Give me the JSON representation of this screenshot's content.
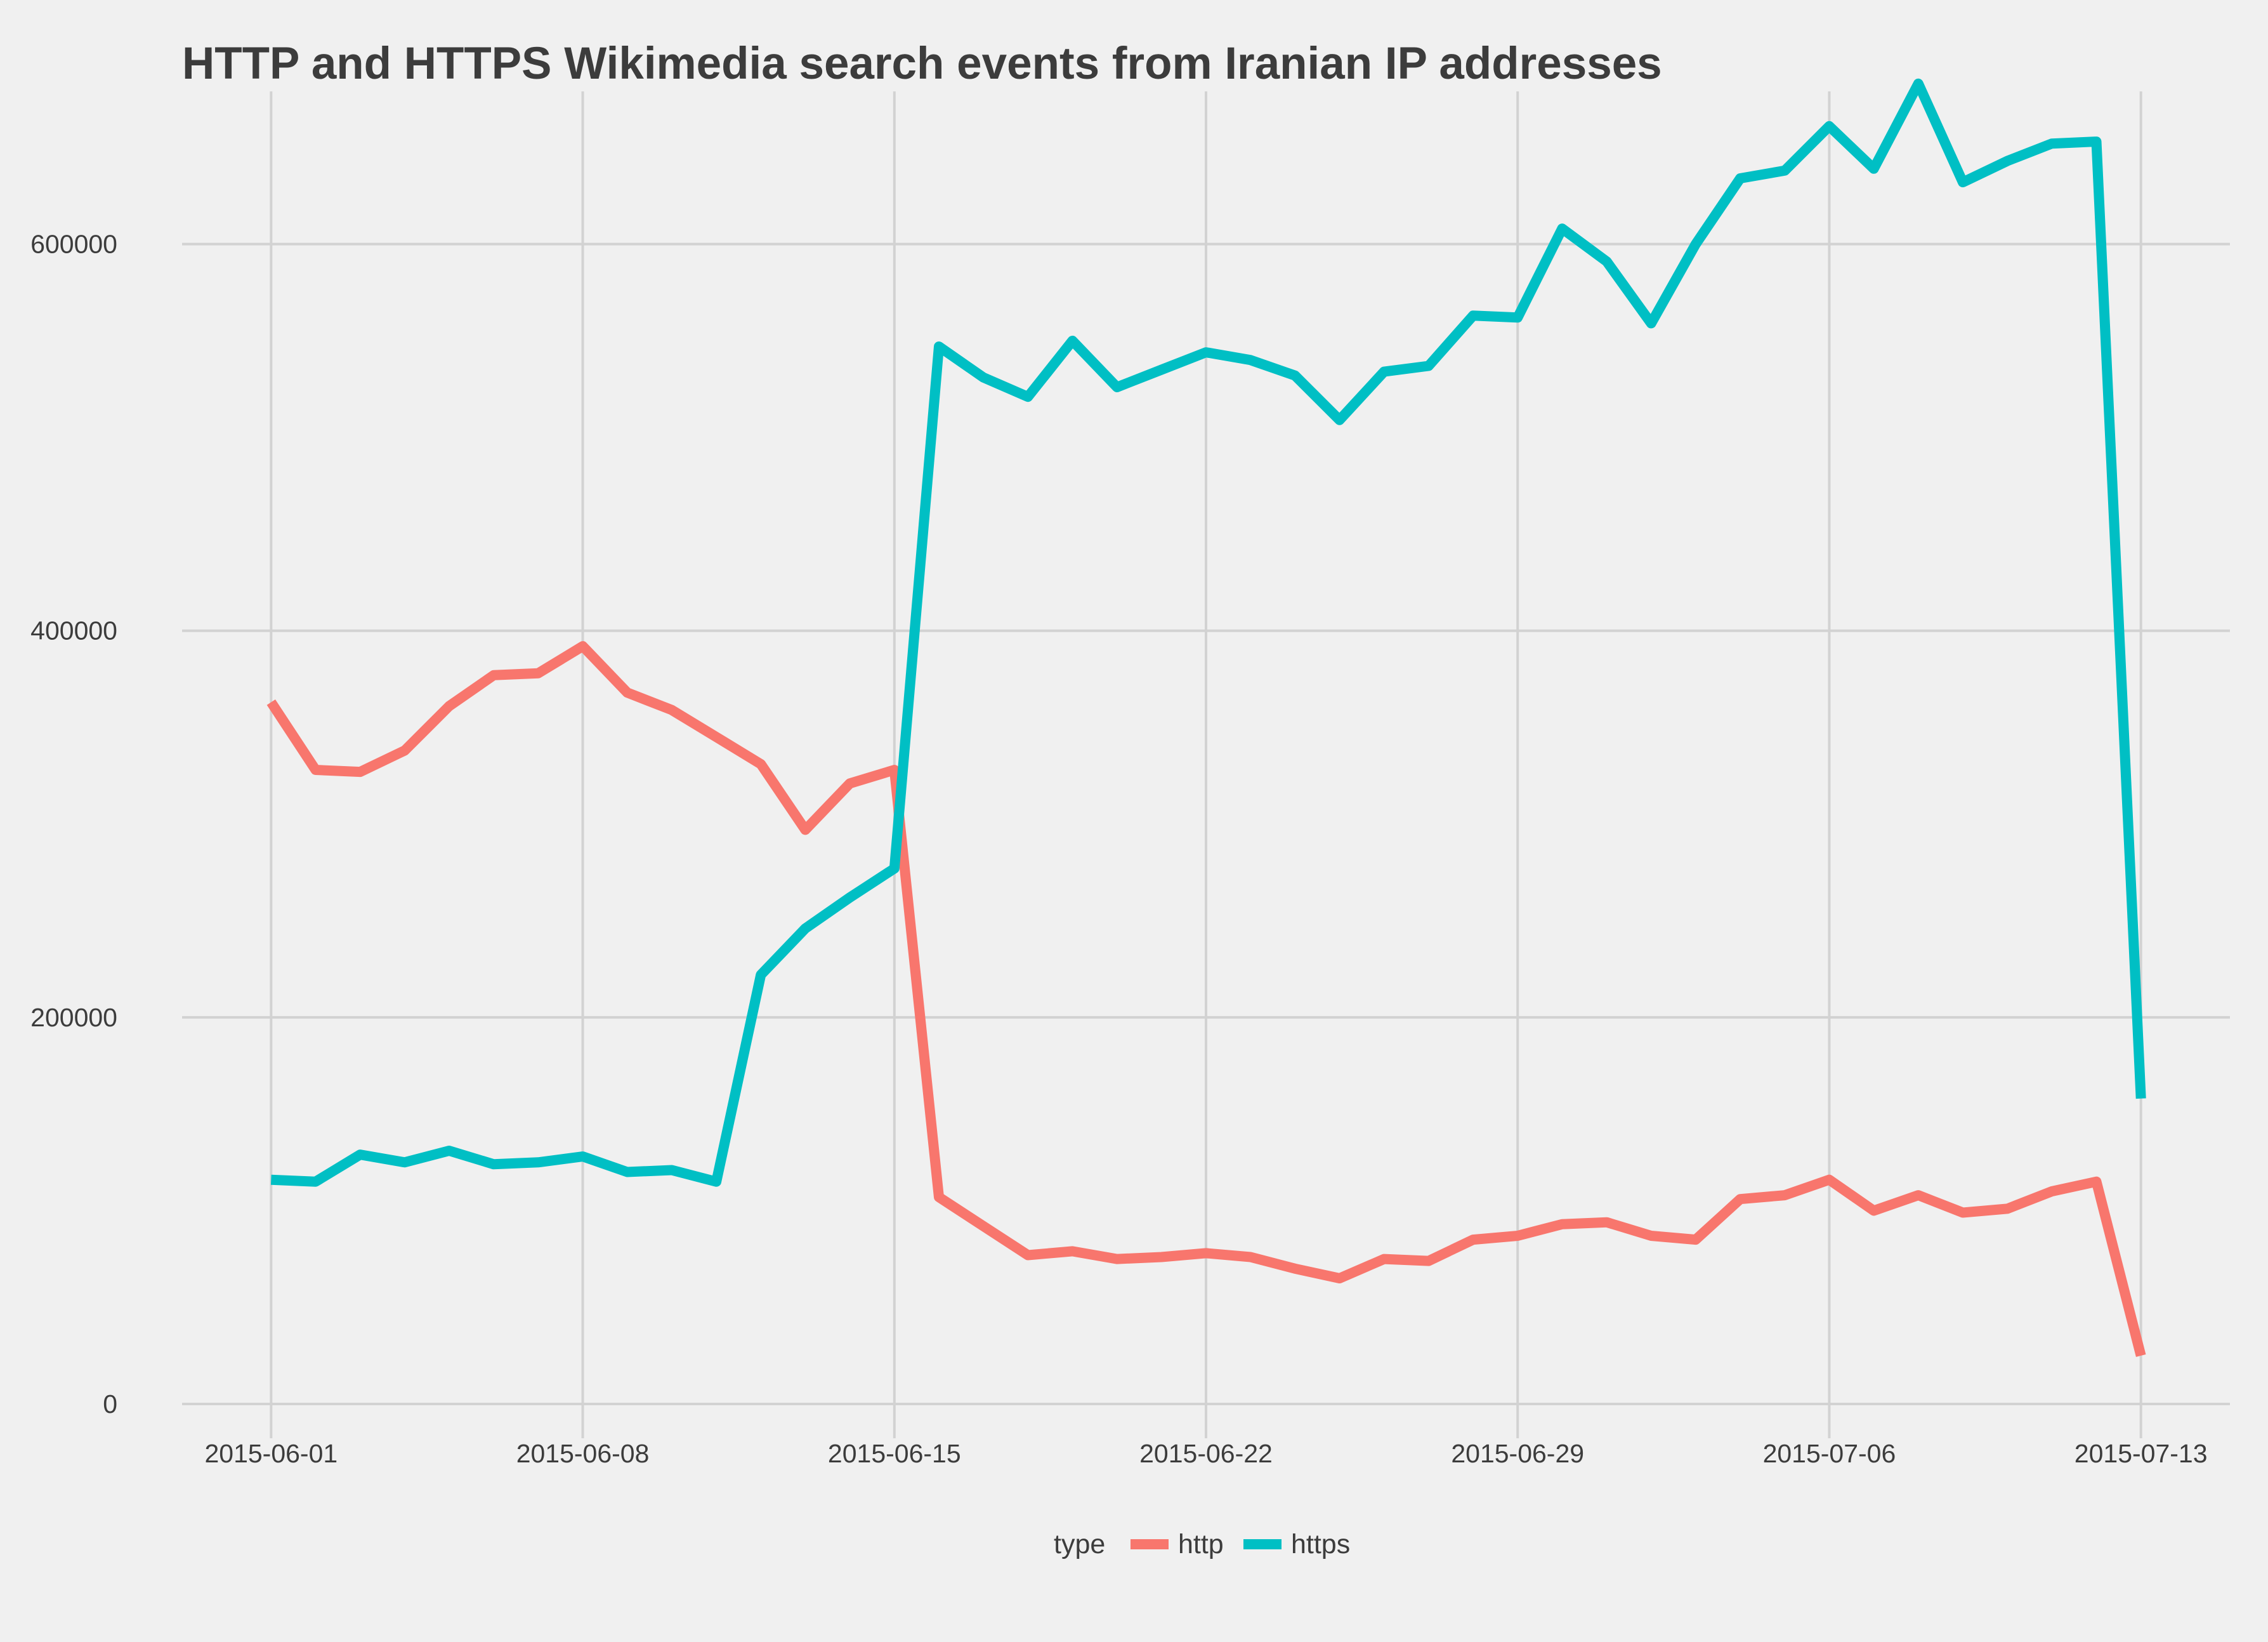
{
  "chart_data": {
    "type": "line",
    "title": "HTTP and HTTPS Wikimedia search events from Iranian IP addresses",
    "xlabel": "",
    "ylabel": "",
    "x": [
      "2015-06-01",
      "2015-06-02",
      "2015-06-03",
      "2015-06-04",
      "2015-06-05",
      "2015-06-06",
      "2015-06-07",
      "2015-06-08",
      "2015-06-09",
      "2015-06-10",
      "2015-06-11",
      "2015-06-12",
      "2015-06-13",
      "2015-06-14",
      "2015-06-15",
      "2015-06-16",
      "2015-06-17",
      "2015-06-18",
      "2015-06-19",
      "2015-06-20",
      "2015-06-21",
      "2015-06-22",
      "2015-06-23",
      "2015-06-24",
      "2015-06-25",
      "2015-06-26",
      "2015-06-27",
      "2015-06-28",
      "2015-06-29",
      "2015-06-30",
      "2015-07-01",
      "2015-07-02",
      "2015-07-03",
      "2015-07-04",
      "2015-07-05",
      "2015-07-06",
      "2015-07-07",
      "2015-07-08",
      "2015-07-09",
      "2015-07-10",
      "2015-07-11",
      "2015-07-12",
      "2015-07-13"
    ],
    "xlim": [
      "2015-05-30T00:00",
      "2015-07-15T00:00"
    ],
    "x_ticks": [
      "2015-06-01",
      "2015-06-08",
      "2015-06-15",
      "2015-06-22",
      "2015-06-29",
      "2015-07-06",
      "2015-07-13"
    ],
    "ylim": [
      0,
      700000
    ],
    "y_ticks": [
      0,
      200000,
      400000,
      600000
    ],
    "y_tick_labels": [
      "0",
      "200000",
      "400000",
      "600000"
    ],
    "grid": true,
    "legend": {
      "position": "bottom",
      "title": "type"
    },
    "series": [
      {
        "name": "http",
        "color": "#f8766d",
        "values": [
          363000,
          328000,
          327000,
          338000,
          361000,
          377000,
          378000,
          392000,
          368000,
          359000,
          345000,
          331000,
          297000,
          321000,
          328000,
          107000,
          92000,
          77000,
          79000,
          75000,
          76000,
          78000,
          76000,
          70000,
          65000,
          75000,
          74000,
          85000,
          87000,
          93000,
          94000,
          87000,
          85000,
          106000,
          108000,
          116000,
          100000,
          108000,
          99000,
          101000,
          110000,
          115000,
          25000
        ]
      },
      {
        "name": "https",
        "color": "#00bfc4",
        "values": [
          116000,
          115000,
          129000,
          125000,
          131000,
          124000,
          125000,
          128000,
          120000,
          121000,
          115000,
          222000,
          246000,
          262000,
          277000,
          547000,
          531000,
          521000,
          550000,
          526000,
          535000,
          544000,
          540000,
          532000,
          509000,
          534000,
          537000,
          563000,
          562000,
          608000,
          591000,
          559000,
          600000,
          634000,
          638000,
          661000,
          639000,
          683000,
          632000,
          643000,
          652000,
          653000,
          158000
        ]
      }
    ]
  }
}
